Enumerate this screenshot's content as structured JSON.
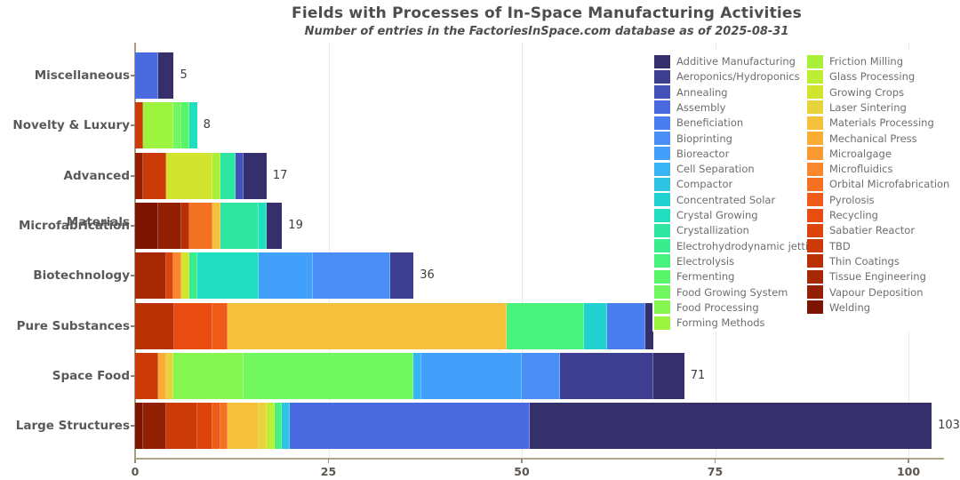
{
  "title": "Fields with Processes of In-Space Manufacturing Activities",
  "subtitle": "Number of entries in the FactoriesInSpace.com database as of 2025-08-31",
  "processes": [
    {
      "name": "Additive Manufacturing",
      "color": "#35306b"
    },
    {
      "name": "Aeroponics/Hydroponics",
      "color": "#3d3e8f"
    },
    {
      "name": "Annealing",
      "color": "#4451b8"
    },
    {
      "name": "Assembly",
      "color": "#4a6be0"
    },
    {
      "name": "Beneficiation",
      "color": "#4a7ef0"
    },
    {
      "name": "Bioprinting",
      "color": "#4a8ef5"
    },
    {
      "name": "Bioreactor",
      "color": "#42a0fb"
    },
    {
      "name": "Cell Separation",
      "color": "#38b3f3"
    },
    {
      "name": "Compactor",
      "color": "#2ec4e6"
    },
    {
      "name": "Concentrated Solar",
      "color": "#22d2d2"
    },
    {
      "name": "Crystal Growing",
      "color": "#21dec0"
    },
    {
      "name": "Crystallization",
      "color": "#2ee6a2"
    },
    {
      "name": "Electrohydrodynamic jetting",
      "color": "#39ed8c"
    },
    {
      "name": "Electrolysis",
      "color": "#48f27c"
    },
    {
      "name": "Fermenting",
      "color": "#59f569"
    },
    {
      "name": "Food Growing System",
      "color": "#71f75f"
    },
    {
      "name": "Food Processing",
      "color": "#86f650"
    },
    {
      "name": "Forming Methods",
      "color": "#9cf43f"
    },
    {
      "name": "Friction Milling",
      "color": "#a9f138"
    },
    {
      "name": "Glass Processing",
      "color": "#bbee34"
    },
    {
      "name": "Growing Crops",
      "color": "#d2e42e"
    },
    {
      "name": "Laser Sintering",
      "color": "#e7d33c"
    },
    {
      "name": "Materials Processing",
      "color": "#f5c13b"
    },
    {
      "name": "Mechanical Press",
      "color": "#fbac33"
    },
    {
      "name": "Microalgage",
      "color": "#fb9a31"
    },
    {
      "name": "Microfluidics",
      "color": "#fa872b"
    },
    {
      "name": "Orbital Microfabrication",
      "color": "#f37121"
    },
    {
      "name": "Pyrolosis",
      "color": "#ef5b18"
    },
    {
      "name": "Recycling",
      "color": "#e84c11"
    },
    {
      "name": "Sabatier Reactor",
      "color": "#dc440b"
    },
    {
      "name": "TBD",
      "color": "#cb3a07"
    },
    {
      "name": "Thin Coatings",
      "color": "#b93005"
    },
    {
      "name": "Tissue Engineering",
      "color": "#a72804"
    },
    {
      "name": "Vapour Deposition",
      "color": "#942003"
    },
    {
      "name": "Welding",
      "color": "#7d1402"
    }
  ],
  "legend": {
    "position": "top-right",
    "columns": [
      [
        "Additive Manufacturing",
        "Aeroponics/Hydroponics",
        "Annealing",
        "Assembly",
        "Beneficiation",
        "Bioprinting",
        "Bioreactor",
        "Cell Separation",
        "Compactor",
        "Concentrated Solar",
        "Crystal Growing",
        "Crystallization",
        "Electrohydrodynamic jetting",
        "Electrolysis",
        "Fermenting",
        "Food Growing System",
        "Food Processing",
        "Forming Methods"
      ],
      [
        "Friction Milling",
        "Glass Processing",
        "Growing Crops",
        "Laser Sintering",
        "Materials Processing",
        "Mechanical Press",
        "Microalgage",
        "Microfluidics",
        "Orbital Microfabrication",
        "Pyrolosis",
        "Recycling",
        "Sabatier Reactor",
        "TBD",
        "Thin Coatings",
        "Tissue Engineering",
        "Vapour Deposition",
        "Welding"
      ]
    ]
  },
  "chart_data": {
    "type": "bar",
    "orientation": "horizontal",
    "stacked": true,
    "title": "Fields with Processes of In-Space Manufacturing Activities",
    "subtitle": "Number of entries in the FactoriesInSpace.com database as of 2025-08-31",
    "xlabel": "",
    "ylabel": "",
    "xlim": [
      0,
      105
    ],
    "x_ticks": [
      0,
      25,
      50,
      75,
      100
    ],
    "grid": "faint-vertical",
    "categories": [
      "Miscellaneous",
      "Novelty & Luxury",
      "Advanced Materials",
      "Microfabrication",
      "Biotechnology",
      "Pure Substances",
      "Space Food",
      "Large Structures"
    ],
    "bars": [
      {
        "category": "Miscellaneous",
        "total": 5,
        "total_label": "5",
        "segments": [
          {
            "process": "Assembly",
            "value": 3
          },
          {
            "process": "Additive Manufacturing",
            "value": 2
          }
        ]
      },
      {
        "category": "Novelty & Luxury",
        "total": 8,
        "total_label": "8",
        "segments": [
          {
            "process": "TBD",
            "value": 1
          },
          {
            "process": "Forming Methods",
            "value": 4
          },
          {
            "process": "Food Growing System",
            "value": 1
          },
          {
            "process": "Fermenting",
            "value": 1
          },
          {
            "process": "Crystal Growing",
            "value": 1
          }
        ]
      },
      {
        "category": "Advanced Materials",
        "total": 17,
        "total_label": "17",
        "segments": [
          {
            "process": "Vapour Deposition",
            "value": 1
          },
          {
            "process": "TBD",
            "value": 3
          },
          {
            "process": "Growing Crops",
            "value": 6
          },
          {
            "process": "Friction Milling",
            "value": 1
          },
          {
            "process": "Crystallization",
            "value": 2
          },
          {
            "process": "Annealing",
            "value": 1
          },
          {
            "process": "Additive Manufacturing",
            "value": 3
          }
        ]
      },
      {
        "category": "Microfabrication",
        "total": 19,
        "total_label": "19",
        "segments": [
          {
            "process": "Welding",
            "value": 3
          },
          {
            "process": "Vapour Deposition",
            "value": 3
          },
          {
            "process": "Thin Coatings",
            "value": 1
          },
          {
            "process": "Orbital Microfabrication",
            "value": 3
          },
          {
            "process": "Materials Processing",
            "value": 1
          },
          {
            "process": "Crystallization",
            "value": 5
          },
          {
            "process": "Crystal Growing",
            "value": 1
          },
          {
            "process": "Additive Manufacturing",
            "value": 2
          }
        ]
      },
      {
        "category": "Biotechnology",
        "total": 36,
        "total_label": "36",
        "segments": [
          {
            "process": "Tissue Engineering",
            "value": 4
          },
          {
            "process": "Sabatier Reactor",
            "value": 1
          },
          {
            "process": "Microfluidics",
            "value": 1
          },
          {
            "process": "Growing Crops",
            "value": 1
          },
          {
            "process": "Electrohydrodynamic jetting",
            "value": 1
          },
          {
            "process": "Crystal Growing",
            "value": 8
          },
          {
            "process": "Bioreactor",
            "value": 7
          },
          {
            "process": "Bioprinting",
            "value": 10
          },
          {
            "process": "Aeroponics/Hydroponics",
            "value": 3
          }
        ]
      },
      {
        "category": "Pure Substances",
        "total": 67,
        "total_label": "",
        "segments": [
          {
            "process": "Thin Coatings",
            "value": 5
          },
          {
            "process": "Recycling",
            "value": 5
          },
          {
            "process": "Pyrolosis",
            "value": 2
          },
          {
            "process": "Materials Processing",
            "value": 36
          },
          {
            "process": "Electrolysis",
            "value": 10
          },
          {
            "process": "Concentrated Solar",
            "value": 3
          },
          {
            "process": "Beneficiation",
            "value": 5
          },
          {
            "process": "Additive Manufacturing",
            "value": 1
          }
        ]
      },
      {
        "category": "Space Food",
        "total": 71,
        "total_label": "71",
        "segments": [
          {
            "process": "TBD",
            "value": 3
          },
          {
            "process": "Mechanical Press",
            "value": 1
          },
          {
            "process": "Laser Sintering",
            "value": 1
          },
          {
            "process": "Food Processing",
            "value": 9
          },
          {
            "process": "Food Growing System",
            "value": 22
          },
          {
            "process": "Cell Separation",
            "value": 1
          },
          {
            "process": "Bioreactor",
            "value": 13
          },
          {
            "process": "Bioprinting",
            "value": 5
          },
          {
            "process": "Aeroponics/Hydroponics",
            "value": 12
          },
          {
            "process": "Additive Manufacturing",
            "value": 4
          }
        ]
      },
      {
        "category": "Large Structures",
        "total": 103,
        "total_label": "103",
        "segments": [
          {
            "process": "Welding",
            "value": 1
          },
          {
            "process": "Vapour Deposition",
            "value": 3
          },
          {
            "process": "TBD",
            "value": 4
          },
          {
            "process": "Sabatier Reactor",
            "value": 2
          },
          {
            "process": "Pyrolosis",
            "value": 1
          },
          {
            "process": "Orbital Microfabrication",
            "value": 1
          },
          {
            "process": "Materials Processing",
            "value": 4
          },
          {
            "process": "Laser Sintering",
            "value": 1
          },
          {
            "process": "Glass Processing",
            "value": 1
          },
          {
            "process": "Electrolysis",
            "value": 1
          },
          {
            "process": "Compactor",
            "value": 1
          },
          {
            "process": "Assembly",
            "value": 31
          },
          {
            "process": "Additive Manufacturing",
            "value": 52
          }
        ]
      }
    ]
  }
}
